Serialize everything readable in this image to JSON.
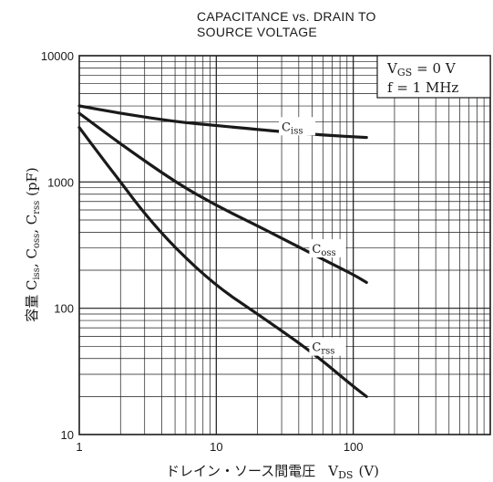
{
  "chart_data": {
    "type": "line",
    "title_line1": "CAPACITANCE vs. DRAIN TO",
    "title_line2": "SOURCE VOLTAGE",
    "x_scale": "log",
    "y_scale": "log",
    "xlim": [
      1,
      1000
    ],
    "ylim": [
      10,
      10000
    ],
    "x_ticks": [
      1,
      10,
      100
    ],
    "y_ticks": [
      10,
      100,
      1000,
      10000
    ],
    "x_tick_labels": [
      "1",
      "10",
      "100"
    ],
    "y_tick_labels": [
      "10",
      "100",
      "1000",
      "10000"
    ],
    "xlabel_prefix": "ドレイン・ソース間電圧",
    "xlabel_var": "V",
    "xlabel_sub": "DS",
    "xlabel_unit": "(V)",
    "ylabel": "容量 C",
    "ylabel_parts": [
      "容量  C",
      "iss",
      ", C",
      "oss",
      ", C",
      "rss",
      "  (pF)"
    ],
    "grid": true,
    "legend_position": "top-right",
    "conditions": {
      "line1_var": "V",
      "line1_sub": "GS",
      "line1_rest": "= 0  V",
      "line2": "f = 1  MHz"
    },
    "series": [
      {
        "name": "C",
        "sub": "iss",
        "label_x": 30,
        "x": [
          1,
          2,
          5,
          10,
          30,
          60,
          125
        ],
        "y": [
          4000,
          3500,
          3000,
          2800,
          2500,
          2350,
          2250
        ]
      },
      {
        "name": "C",
        "sub": "oss",
        "label_x": 50,
        "x": [
          1,
          2,
          5,
          10,
          20,
          50,
          100,
          125
        ],
        "y": [
          3500,
          2000,
          1000,
          650,
          450,
          270,
          185,
          160
        ]
      },
      {
        "name": "C",
        "sub": "rss",
        "label_x": 50,
        "x": [
          1,
          1.5,
          2,
          3,
          5,
          10,
          20,
          50,
          100,
          125
        ],
        "y": [
          2700,
          1500,
          1000,
          560,
          300,
          150,
          90,
          45,
          24,
          20
        ]
      }
    ]
  }
}
